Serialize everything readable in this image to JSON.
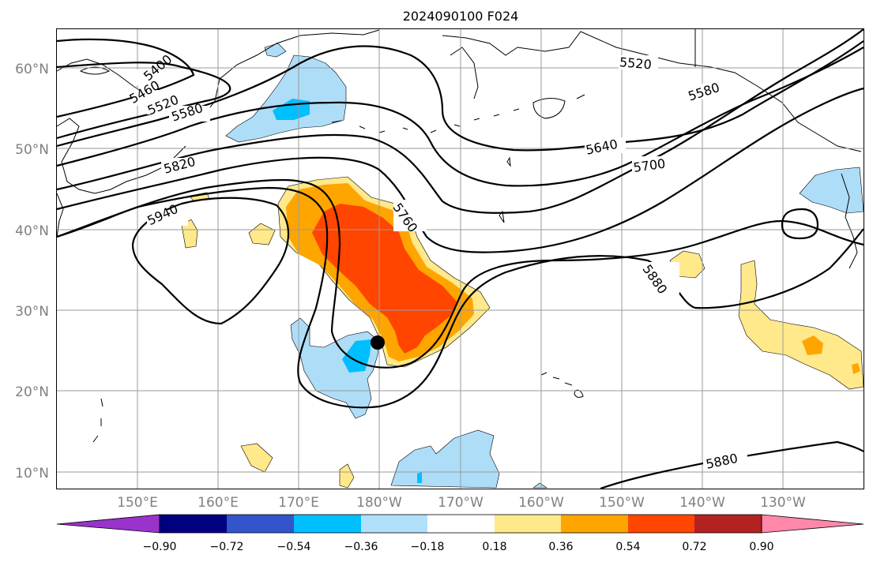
{
  "title": "2024090100 F024",
  "lat_labels": [
    "60°N",
    "50°N",
    "40°N",
    "30°N",
    "20°N",
    "10°N"
  ],
  "lon_labels": [
    "150°E",
    "160°E",
    "170°E",
    "180°W",
    "170°W",
    "160°W",
    "150°W",
    "140°W",
    "130°W"
  ],
  "contour_labels": [
    "5400",
    "5460",
    "5520",
    "5580",
    "5820",
    "5940",
    "5760",
    "5640",
    "5700",
    "5580",
    "5520",
    "5880",
    "5880"
  ],
  "colorbar": {
    "tick_labels": [
      "−0.90",
      "−0.72",
      "−0.54",
      "−0.36",
      "−0.18",
      "0.18",
      "0.36",
      "0.54",
      "0.72",
      "0.90"
    ],
    "colors": [
      "#9933cc",
      "#000080",
      "#3355cc",
      "#00bfff",
      "#b0e0fa",
      "#ffffff",
      "#ffe98a",
      "#ffa500",
      "#ff4500",
      "#b22222",
      "#ff88aa"
    ]
  },
  "colors": {
    "light_blue": "#aeddf8",
    "blue": "#00bfff",
    "light_yellow": "#ffe98a",
    "orange": "#ffa500",
    "red_orange": "#ff4500"
  },
  "marker": "storm-center"
}
